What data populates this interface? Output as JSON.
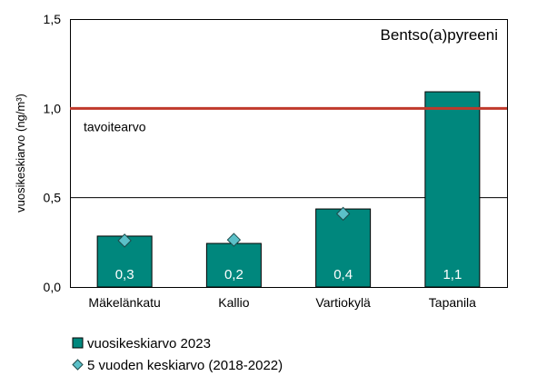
{
  "chart_data": {
    "type": "bar",
    "title": "Bentso(a)pyreeni",
    "ylabel": "vuosikeskiarvo (ng/m³)",
    "xlabel": "",
    "ylim": [
      0,
      1.5
    ],
    "yticks": [
      0,
      0.5,
      1.0,
      1.5
    ],
    "ytick_labels": [
      "0,0",
      "0,5",
      "1,0",
      "1,5"
    ],
    "gridlines": [
      0.5
    ],
    "categories": [
      "Mäkelänkatu",
      "Kallio",
      "Vartiokylä",
      "Tapanila"
    ],
    "series": [
      {
        "name": "vuosikeskiarvo 2023",
        "type": "bar",
        "values": [
          0.285,
          0.244,
          0.437,
          1.093
        ],
        "labels": [
          "0,3",
          "0,2",
          "0,4",
          "1,1"
        ],
        "color": "#00877D"
      },
      {
        "name": "5 vuoden keskiarvo (2018-2022)",
        "type": "marker",
        "marker": "diamond",
        "values": [
          0.26,
          0.264,
          0.41,
          null
        ],
        "color": "#5BC0C8"
      }
    ],
    "reference_line": {
      "label": "tavoitearvo",
      "value": 1.0,
      "color": "#C0392B"
    },
    "legend_position": "bottom-left"
  }
}
